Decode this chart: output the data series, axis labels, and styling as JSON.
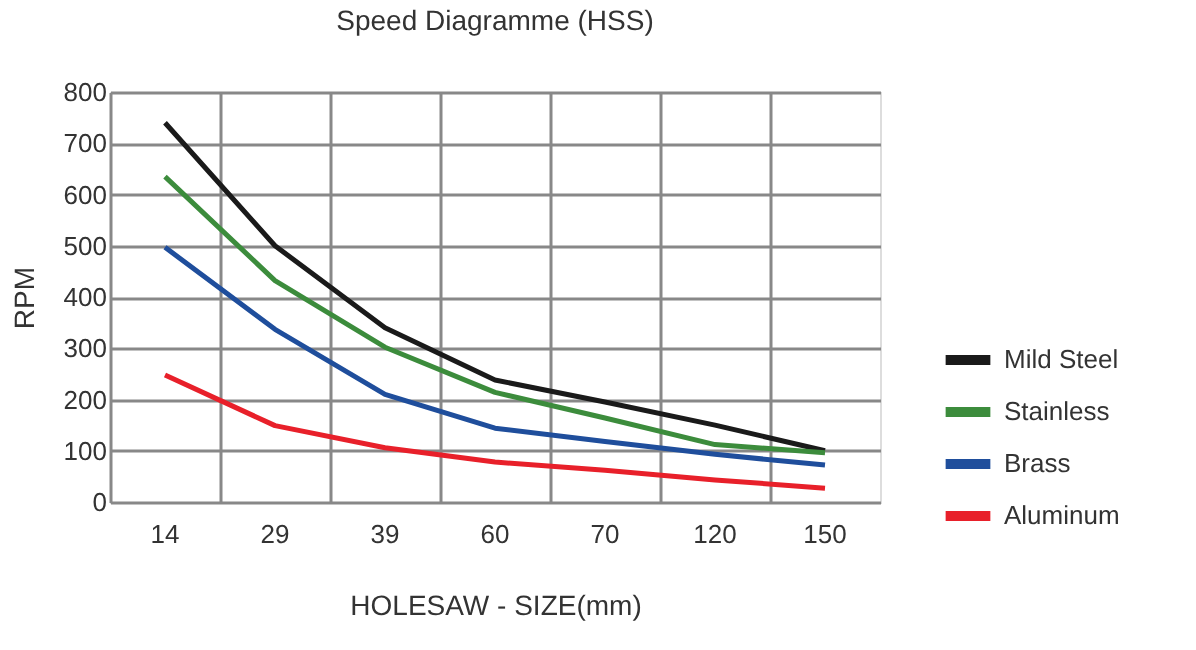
{
  "chart_data": {
    "type": "line",
    "title": "Speed Diagramme (HSS)",
    "xlabel": "HOLESAW - SIZE(mm)",
    "ylabel": "RPM",
    "categories": [
      "14",
      "29",
      "39",
      "60",
      "70",
      "120",
      "150"
    ],
    "series": [
      {
        "name": "Mild Steel",
        "color": "#1a1a1a",
        "values": [
          740,
          500,
          340,
          238,
          195,
          150,
          100
        ]
      },
      {
        "name": "Stainless",
        "color": "#3c8c3c",
        "values": [
          635,
          432,
          302,
          214,
          164,
          112,
          96
        ]
      },
      {
        "name": "Brass",
        "color": "#1f4e9c",
        "values": [
          497,
          337,
          210,
          144,
          118,
          93,
          72
        ]
      },
      {
        "name": "Aluminum",
        "color": "#e8202a",
        "values": [
          248,
          149,
          106,
          78,
          62,
          43,
          27
        ]
      }
    ],
    "ylim": [
      0,
      800
    ],
    "yticks": [
      0,
      100,
      200,
      300,
      400,
      500,
      600,
      700,
      800
    ],
    "grid": true,
    "legend": "right",
    "marker": "none",
    "line_style": "solid"
  }
}
